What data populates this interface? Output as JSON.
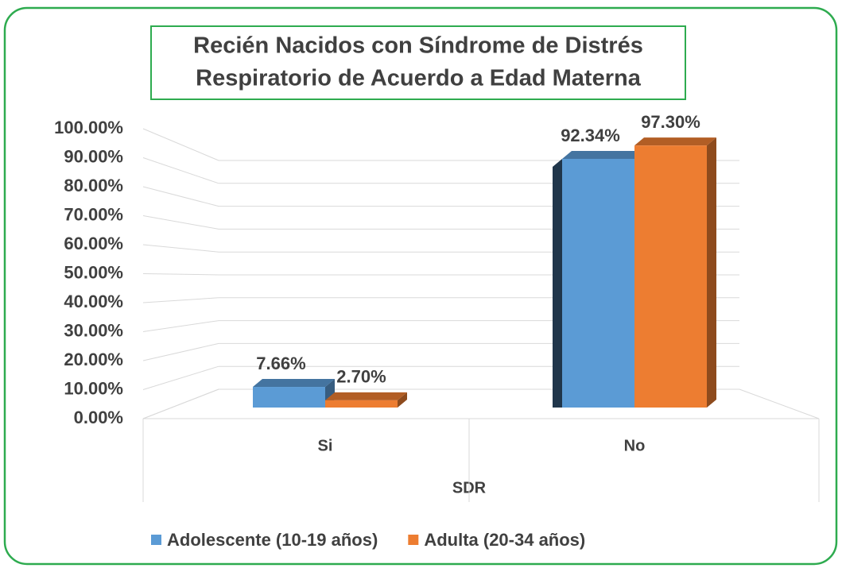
{
  "chart_data": {
    "type": "bar3d",
    "title": [
      "Recién Nacidos con Síndrome de Distrés",
      "Respiratorio de Acuerdo a Edad Materna"
    ],
    "xlabel": "SDR",
    "categories": [
      "Si",
      "No"
    ],
    "series": [
      {
        "name": "Adolescente (10-19 años)",
        "color": "#5b9bd5",
        "values": [
          7.66,
          92.34
        ],
        "value_labels": [
          "7.66%",
          "92.34%"
        ]
      },
      {
        "name": "Adulta (20-34 años)",
        "color": "#ed7d31",
        "values": [
          2.7,
          97.3
        ],
        "value_labels": [
          "2.70%",
          "97.30%"
        ]
      }
    ],
    "ylim": [
      0,
      100
    ],
    "yticks": [
      {
        "value": 0,
        "label": "0.00%"
      },
      {
        "value": 10,
        "label": "10.00%"
      },
      {
        "value": 20,
        "label": "20.00%"
      },
      {
        "value": 30,
        "label": "30.00%"
      },
      {
        "value": 40,
        "label": "40.00%"
      },
      {
        "value": 50,
        "label": "50.00%"
      },
      {
        "value": 60,
        "label": "60.00%"
      },
      {
        "value": 70,
        "label": "70.00%"
      },
      {
        "value": 80,
        "label": "80.00%"
      },
      {
        "value": 90,
        "label": "90.00%"
      },
      {
        "value": 100,
        "label": "100.00%"
      }
    ],
    "grid": true,
    "legend": "bottom"
  }
}
